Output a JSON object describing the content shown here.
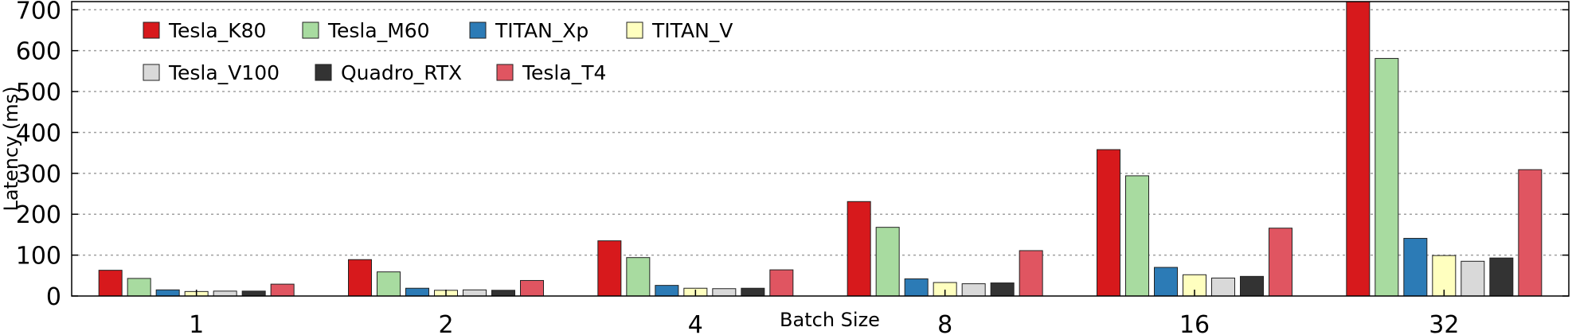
{
  "chart_data": {
    "type": "bar",
    "xlabel": "Batch Size",
    "ylabel": "Latency (ms)",
    "ylim": [
      0,
      720
    ],
    "yticks": [
      0,
      100,
      200,
      300,
      400,
      500,
      600,
      700
    ],
    "grid": "horizontal dotted",
    "legend_position": "top-left",
    "categories": [
      "1",
      "2",
      "4",
      "8",
      "16",
      "32"
    ],
    "series": [
      {
        "name": "Tesla_K80",
        "color": "#d7191c",
        "values": [
          63,
          89,
          135,
          231,
          358,
          730
        ]
      },
      {
        "name": "Tesla_M60",
        "color": "#a8dba0",
        "values": [
          43,
          59,
          94,
          168,
          294,
          581
        ]
      },
      {
        "name": "TITAN_Xp",
        "color": "#2c7bb6",
        "values": [
          15,
          19,
          26,
          42,
          70,
          141
        ]
      },
      {
        "name": "TITAN_V",
        "color": "#ffffbf",
        "values": [
          11,
          14,
          19,
          33,
          52,
          99
        ]
      },
      {
        "name": "Tesla_V100",
        "color": "#d9d9d9",
        "values": [
          12,
          15,
          18,
          30,
          44,
          85
        ]
      },
      {
        "name": "Quadro_RTX",
        "color": "#333333",
        "values": [
          12,
          14,
          19,
          32,
          48,
          93
        ]
      },
      {
        "name": "Tesla_T4",
        "color": "#e05561",
        "values": [
          29,
          38,
          64,
          111,
          166,
          309
        ]
      }
    ]
  }
}
